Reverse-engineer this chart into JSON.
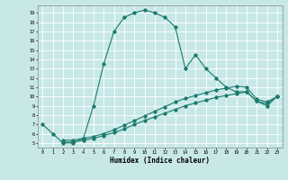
{
  "xlabel": "Humidex (Indice chaleur)",
  "line_color": "#1a7a6e",
  "bg_color": "#c8e8e8",
  "grid_color": "#ffffff",
  "xlim": [
    -0.5,
    23.5
  ],
  "ylim": [
    4.5,
    19.8
  ],
  "yticks": [
    5,
    6,
    7,
    8,
    9,
    10,
    11,
    12,
    13,
    14,
    15,
    16,
    17,
    18,
    19
  ],
  "xticks": [
    0,
    1,
    2,
    3,
    4,
    5,
    6,
    7,
    8,
    9,
    10,
    11,
    12,
    13,
    14,
    15,
    16,
    17,
    18,
    19,
    20,
    21,
    22,
    23
  ],
  "curve1_x": [
    0,
    1,
    2,
    3,
    4,
    5,
    6,
    7,
    8,
    9,
    10,
    11,
    12,
    13,
    14,
    15,
    16,
    17,
    18,
    19,
    20,
    21,
    22,
    23
  ],
  "curve1_y": [
    7.0,
    6.0,
    5.0,
    5.0,
    5.5,
    9.0,
    13.5,
    17.0,
    18.5,
    19.0,
    19.3,
    19.0,
    18.5,
    17.5,
    13.0,
    14.5,
    13.0,
    12.0,
    11.0,
    10.5,
    10.5,
    9.5,
    9.0,
    10.0
  ],
  "curve2_x": [
    2,
    3,
    4,
    5,
    6,
    7,
    8,
    9,
    10,
    11,
    12,
    13,
    14,
    15,
    16,
    17,
    18,
    19,
    20,
    21,
    22,
    23
  ],
  "curve2_y": [
    5.1,
    5.1,
    5.3,
    5.5,
    5.8,
    6.1,
    6.5,
    7.0,
    7.4,
    7.8,
    8.2,
    8.6,
    9.0,
    9.3,
    9.6,
    9.9,
    10.1,
    10.3,
    10.5,
    9.5,
    9.2,
    10.0
  ],
  "curve3_x": [
    2,
    3,
    4,
    5,
    6,
    7,
    8,
    9,
    10,
    11,
    12,
    13,
    14,
    15,
    16,
    17,
    18,
    19,
    20,
    21,
    22,
    23
  ],
  "curve3_y": [
    5.3,
    5.3,
    5.5,
    5.7,
    6.0,
    6.4,
    6.9,
    7.4,
    7.9,
    8.4,
    8.9,
    9.4,
    9.8,
    10.1,
    10.4,
    10.7,
    10.9,
    11.1,
    11.0,
    9.7,
    9.4,
    10.0
  ]
}
